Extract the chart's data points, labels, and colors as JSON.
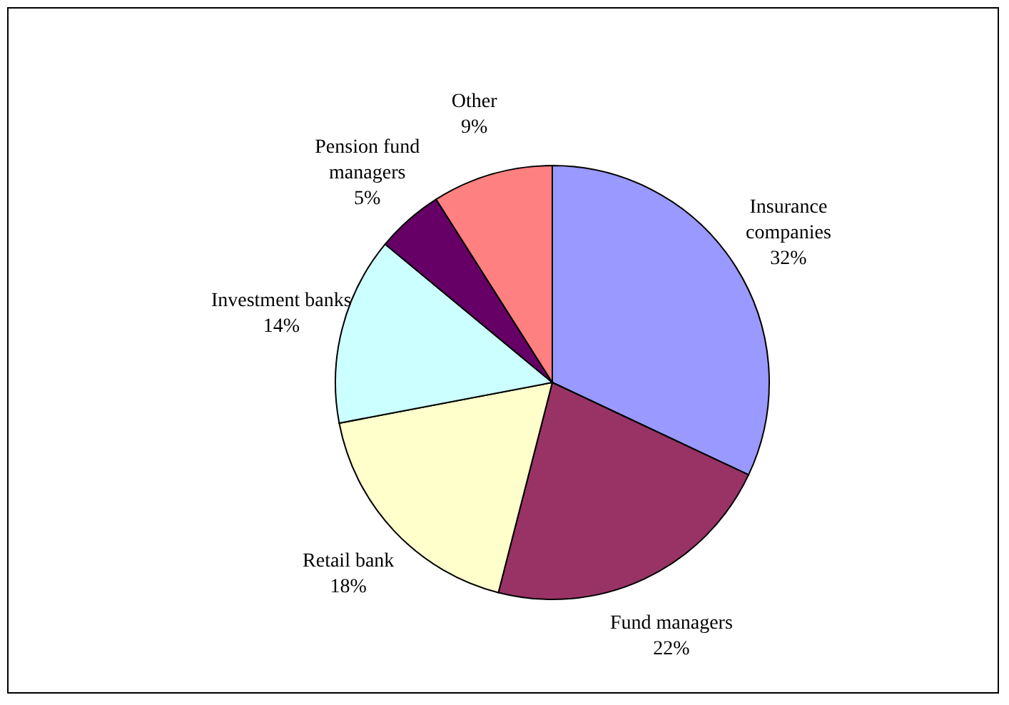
{
  "chart_data": {
    "type": "pie",
    "categories": [
      "Insurance companies",
      "Fund managers",
      "Retail bank",
      "Investment banks",
      "Pension fund managers",
      "Other"
    ],
    "values": [
      32,
      22,
      18,
      14,
      5,
      9
    ],
    "colors": [
      "#9999ff",
      "#993366",
      "#ffffcc",
      "#ccffff",
      "#660066",
      "#ff8080"
    ],
    "value_labels": [
      "32%",
      "22%",
      "18%",
      "14%",
      "5%",
      "9%"
    ]
  }
}
